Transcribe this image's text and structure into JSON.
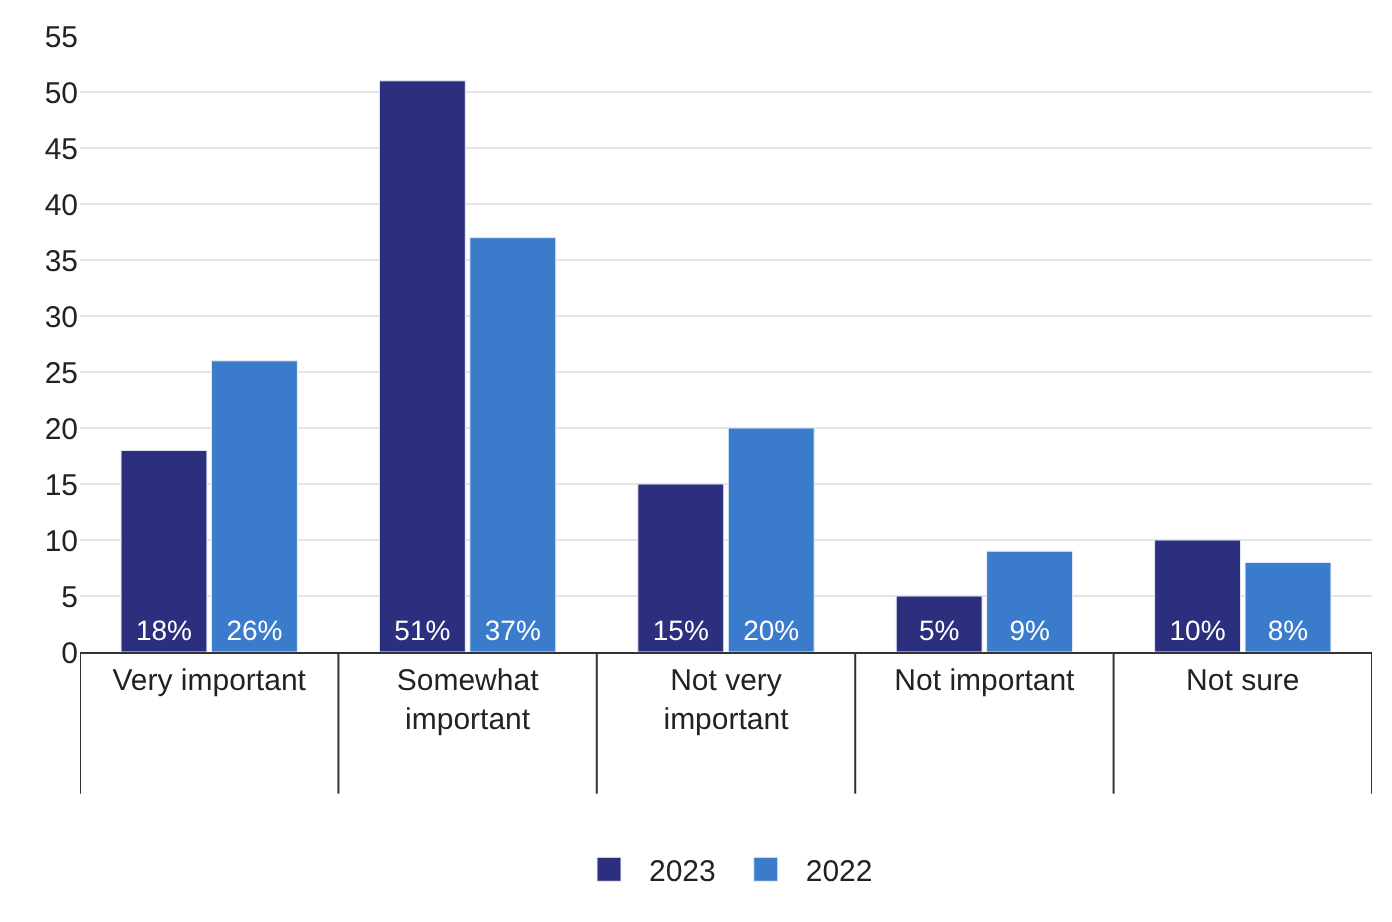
{
  "chart_data": {
    "type": "bar",
    "categories": [
      "Very important",
      "Somewhat important",
      "Not very important",
      "Not important",
      "Not sure"
    ],
    "series": [
      {
        "name": "2023",
        "color": "#2b2f7e",
        "values": [
          18,
          51,
          15,
          5,
          10
        ],
        "value_labels": [
          "18%",
          "51%",
          "15%",
          "5%",
          "10%"
        ]
      },
      {
        "name": "2022",
        "color": "#3b7bcc",
        "values": [
          26,
          37,
          20,
          9,
          8
        ],
        "value_labels": [
          "26%",
          "37%",
          "20%",
          "9%",
          "8%"
        ]
      }
    ],
    "ylim": [
      0,
      55
    ],
    "yticks": [
      0,
      5,
      10,
      15,
      20,
      25,
      30,
      35,
      40,
      45,
      50,
      55
    ],
    "grid": "y",
    "legend": "bottom"
  }
}
